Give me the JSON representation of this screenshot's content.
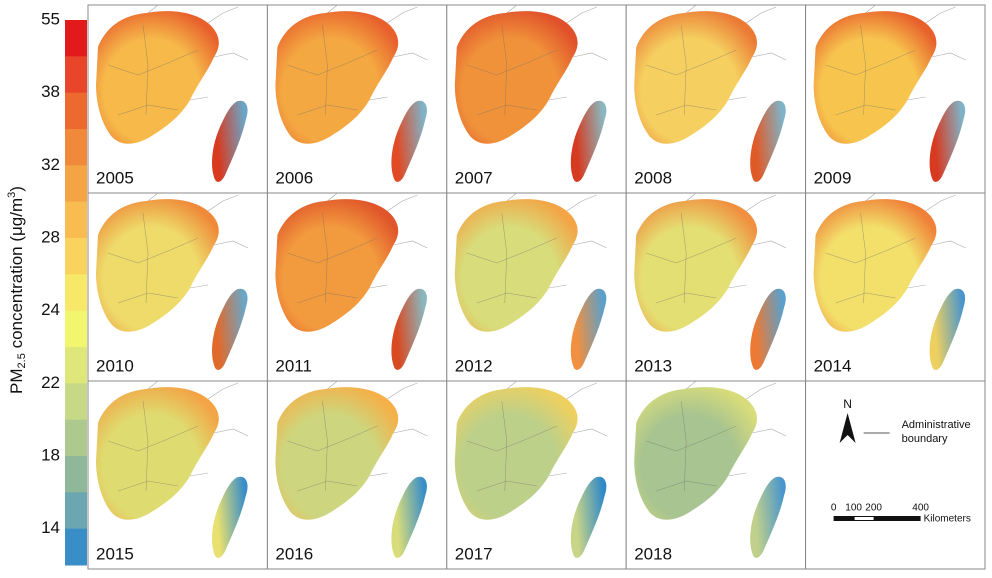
{
  "colorbar": {
    "title": {
      "pm": "PM",
      "sub": "2.5",
      "mid": " concentration (μg/m",
      "sup": "3",
      "end": ")"
    },
    "ticks": [
      55,
      38,
      32,
      28,
      24,
      22,
      18,
      14
    ],
    "colors": [
      "#e31a1c",
      "#e8452a",
      "#ec6a30",
      "#f08a3a",
      "#f5a445",
      "#f8bc50",
      "#f9d35e",
      "#f8e86a",
      "#f2f56e",
      "#dfe77a",
      "#c7d886",
      "#adc98e",
      "#8fb89a",
      "#6ca6b0",
      "#3a8ec8"
    ]
  },
  "panels": [
    {
      "year": "2005",
      "mainland": [
        "#e8612c",
        "#f6b94a"
      ],
      "taiwan": [
        "#d83a20",
        "#6aa6c8"
      ]
    },
    {
      "year": "2006",
      "mainland": [
        "#e8612c",
        "#f4a842"
      ],
      "taiwan": [
        "#e04a25",
        "#7fb3c8"
      ]
    },
    {
      "year": "2007",
      "mainland": [
        "#e0502a",
        "#f0923a"
      ],
      "taiwan": [
        "#d63a20",
        "#8ab8c0"
      ]
    },
    {
      "year": "2008",
      "mainland": [
        "#eb7a35",
        "#f5d060"
      ],
      "taiwan": [
        "#e05a28",
        "#7fb3c8"
      ]
    },
    {
      "year": "2009",
      "mainland": [
        "#e8612c",
        "#f7c54e"
      ],
      "taiwan": [
        "#d83a20",
        "#7fb3c8"
      ]
    },
    {
      "year": "2010",
      "mainland": [
        "#ef8a3a",
        "#eedb6a"
      ],
      "taiwan": [
        "#e06a2c",
        "#6aa6c8"
      ]
    },
    {
      "year": "2011",
      "mainland": [
        "#e0552a",
        "#f29a3e"
      ],
      "taiwan": [
        "#d84a22",
        "#8ab8c0"
      ]
    },
    {
      "year": "2012",
      "mainland": [
        "#f3a445",
        "#d8dc7a"
      ],
      "taiwan": [
        "#f09040",
        "#5aa0cc"
      ]
    },
    {
      "year": "2013",
      "mainland": [
        "#f09040",
        "#e4df72"
      ],
      "taiwan": [
        "#ec7a35",
        "#5aa0cc"
      ]
    },
    {
      "year": "2014",
      "mainland": [
        "#ef8038",
        "#f2e06a"
      ],
      "taiwan": [
        "#eed060",
        "#4a96cc"
      ]
    },
    {
      "year": "2015",
      "mainland": [
        "#f3a445",
        "#dedc70"
      ],
      "taiwan": [
        "#e8e070",
        "#3a8ec8"
      ]
    },
    {
      "year": "2016",
      "mainland": [
        "#f5b048",
        "#cdd67e"
      ],
      "taiwan": [
        "#d8dc7a",
        "#3a8ec8"
      ]
    },
    {
      "year": "2017",
      "mainland": [
        "#eed060",
        "#bcd08a"
      ],
      "taiwan": [
        "#c8d488",
        "#2f89c8"
      ]
    },
    {
      "year": "2018",
      "mainland": [
        "#d8dc7a",
        "#a8c490"
      ],
      "taiwan": [
        "#c0d08c",
        "#4a96cc"
      ]
    }
  ],
  "legend": {
    "north": "N",
    "boundary_line1": "Administrative",
    "boundary_line2": "boundary",
    "scale": [
      "0",
      "100",
      "200",
      "400"
    ],
    "scale_unit": "Kilometers"
  }
}
